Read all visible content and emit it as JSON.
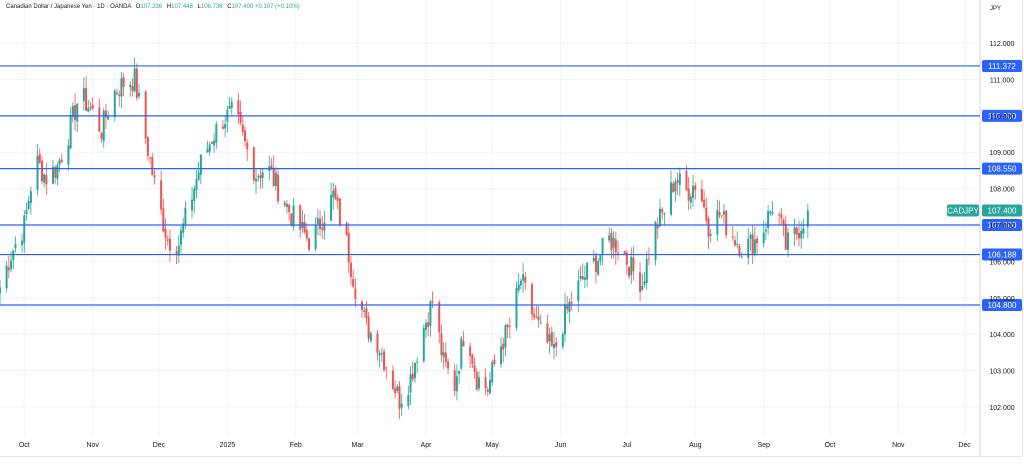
{
  "legend": {
    "title": "Canadian Dollar / Japanese Yen · 1D · OANDA",
    "o_label": "O",
    "o_value": "107.236",
    "h_label": "H",
    "h_value": "107.448",
    "l_label": "L",
    "l_value": "106.736",
    "c_label": "C",
    "c_value": "107.400",
    "change": "+0.107 (+0.10%)"
  },
  "currency": "JPY",
  "colors": {
    "up": "#26a69a",
    "down": "#ef5350",
    "level_line": "#2962ff",
    "price_tag": "#26a69a",
    "axis_text": "#131722",
    "grid": "#f0f3fa"
  },
  "chart_data": {
    "type": "candlestick",
    "symbol": "CADJPY",
    "last_price": 107.4,
    "last_price_label": "107.400",
    "ylim": [
      101.2,
      112.8
    ],
    "y_ticks": [
      102,
      103,
      104,
      105,
      106,
      107,
      108,
      109,
      110,
      111,
      112
    ],
    "y_tick_labels": [
      "102.000",
      "103.000",
      "104.000",
      "105.000",
      "106.000",
      "107.000",
      "108.000",
      "109.000",
      "110.000",
      "111.000",
      "112.000"
    ],
    "x_tick_labels": [
      "Oct",
      "Nov",
      "Dec",
      "2025",
      "Feb",
      "Mar",
      "Apr",
      "May",
      "Jun",
      "Jul",
      "Aug",
      "Sep",
      "Oct",
      "Nov",
      "Dec"
    ],
    "x_tick_dates": [
      "2024-10-01",
      "2024-11-01",
      "2024-12-01",
      "2025-01-01",
      "2025-02-01",
      "2025-03-01",
      "2025-04-01",
      "2025-05-01",
      "2025-06-01",
      "2025-07-01",
      "2025-08-01",
      "2025-09-01",
      "2025-10-01",
      "2025-11-01",
      "2025-12-01"
    ],
    "xlim": [
      "2024-09-20",
      "2025-12-08"
    ],
    "levels": [
      {
        "value": 111.372,
        "label": "111.372"
      },
      {
        "value": 110.0,
        "label": "110.000"
      },
      {
        "value": 108.55,
        "label": "108.550"
      },
      {
        "value": 107.0,
        "label": "107.000"
      },
      {
        "value": 106.188,
        "label": "106.188"
      },
      {
        "value": 104.8,
        "label": "104.800"
      }
    ],
    "series": [
      {
        "date": "2024-09-20",
        "close": 105.3
      },
      {
        "date": "2024-09-25",
        "close": 106.2
      },
      {
        "date": "2024-10-01",
        "close": 107.0
      },
      {
        "date": "2024-10-06",
        "close": 108.8
      },
      {
        "date": "2024-10-11",
        "close": 108.3
      },
      {
        "date": "2024-10-16",
        "close": 108.6
      },
      {
        "date": "2024-10-21",
        "close": 109.5
      },
      {
        "date": "2024-10-26",
        "close": 110.6
      },
      {
        "date": "2024-10-31",
        "close": 110.2
      },
      {
        "date": "2024-11-05",
        "close": 109.6
      },
      {
        "date": "2024-11-10",
        "close": 110.6
      },
      {
        "date": "2024-11-15",
        "close": 110.9
      },
      {
        "date": "2024-11-20",
        "close": 111.0
      },
      {
        "date": "2024-11-25",
        "close": 109.4
      },
      {
        "date": "2024-11-30",
        "close": 107.8
      },
      {
        "date": "2024-12-05",
        "close": 106.6
      },
      {
        "date": "2024-12-10",
        "close": 106.5
      },
      {
        "date": "2024-12-15",
        "close": 107.6
      },
      {
        "date": "2024-12-20",
        "close": 108.7
      },
      {
        "date": "2024-12-25",
        "close": 109.4
      },
      {
        "date": "2024-12-30",
        "close": 109.9
      },
      {
        "date": "2025-01-04",
        "close": 110.1
      },
      {
        "date": "2025-01-09",
        "close": 109.2
      },
      {
        "date": "2025-01-14",
        "close": 108.4
      },
      {
        "date": "2025-01-19",
        "close": 108.6
      },
      {
        "date": "2025-01-24",
        "close": 108.0
      },
      {
        "date": "2025-01-29",
        "close": 107.4
      },
      {
        "date": "2025-02-03",
        "close": 106.9
      },
      {
        "date": "2025-02-08",
        "close": 106.5
      },
      {
        "date": "2025-02-13",
        "close": 107.2
      },
      {
        "date": "2025-02-18",
        "close": 107.8
      },
      {
        "date": "2025-02-23",
        "close": 106.8
      },
      {
        "date": "2025-02-28",
        "close": 105.3
      },
      {
        "date": "2025-03-05",
        "close": 104.2
      },
      {
        "date": "2025-03-10",
        "close": 103.8
      },
      {
        "date": "2025-03-15",
        "close": 103.0
      },
      {
        "date": "2025-03-20",
        "close": 102.2
      },
      {
        "date": "2025-03-25",
        "close": 102.8
      },
      {
        "date": "2025-03-30",
        "close": 104.0
      },
      {
        "date": "2025-04-04",
        "close": 104.9
      },
      {
        "date": "2025-04-09",
        "close": 103.2
      },
      {
        "date": "2025-04-14",
        "close": 102.6
      },
      {
        "date": "2025-04-19",
        "close": 104.3
      },
      {
        "date": "2025-04-24",
        "close": 102.8
      },
      {
        "date": "2025-04-29",
        "close": 102.5
      },
      {
        "date": "2025-05-04",
        "close": 103.6
      },
      {
        "date": "2025-05-09",
        "close": 104.2
      },
      {
        "date": "2025-05-14",
        "close": 105.5
      },
      {
        "date": "2025-05-19",
        "close": 104.6
      },
      {
        "date": "2025-05-24",
        "close": 103.9
      },
      {
        "date": "2025-05-29",
        "close": 103.5
      },
      {
        "date": "2025-06-03",
        "close": 104.5
      },
      {
        "date": "2025-06-08",
        "close": 105.2
      },
      {
        "date": "2025-06-13",
        "close": 105.7
      },
      {
        "date": "2025-06-18",
        "close": 106.1
      },
      {
        "date": "2025-06-23",
        "close": 106.6
      },
      {
        "date": "2025-06-28",
        "close": 106.4
      },
      {
        "date": "2025-07-03",
        "close": 105.8
      },
      {
        "date": "2025-07-08",
        "close": 105.4
      },
      {
        "date": "2025-07-13",
        "close": 106.8
      },
      {
        "date": "2025-07-18",
        "close": 107.4
      },
      {
        "date": "2025-07-23",
        "close": 108.3
      },
      {
        "date": "2025-07-28",
        "close": 107.9
      },
      {
        "date": "2025-08-02",
        "close": 108.2
      },
      {
        "date": "2025-08-07",
        "close": 107.0
      },
      {
        "date": "2025-08-12",
        "close": 107.3
      },
      {
        "date": "2025-08-17",
        "close": 106.8
      },
      {
        "date": "2025-08-22",
        "close": 106.4
      },
      {
        "date": "2025-08-27",
        "close": 106.5
      },
      {
        "date": "2025-09-01",
        "close": 106.9
      },
      {
        "date": "2025-09-06",
        "close": 107.7
      },
      {
        "date": "2025-09-11",
        "close": 106.4
      },
      {
        "date": "2025-09-16",
        "close": 106.8
      },
      {
        "date": "2025-09-21",
        "close": 107.4
      }
    ]
  }
}
